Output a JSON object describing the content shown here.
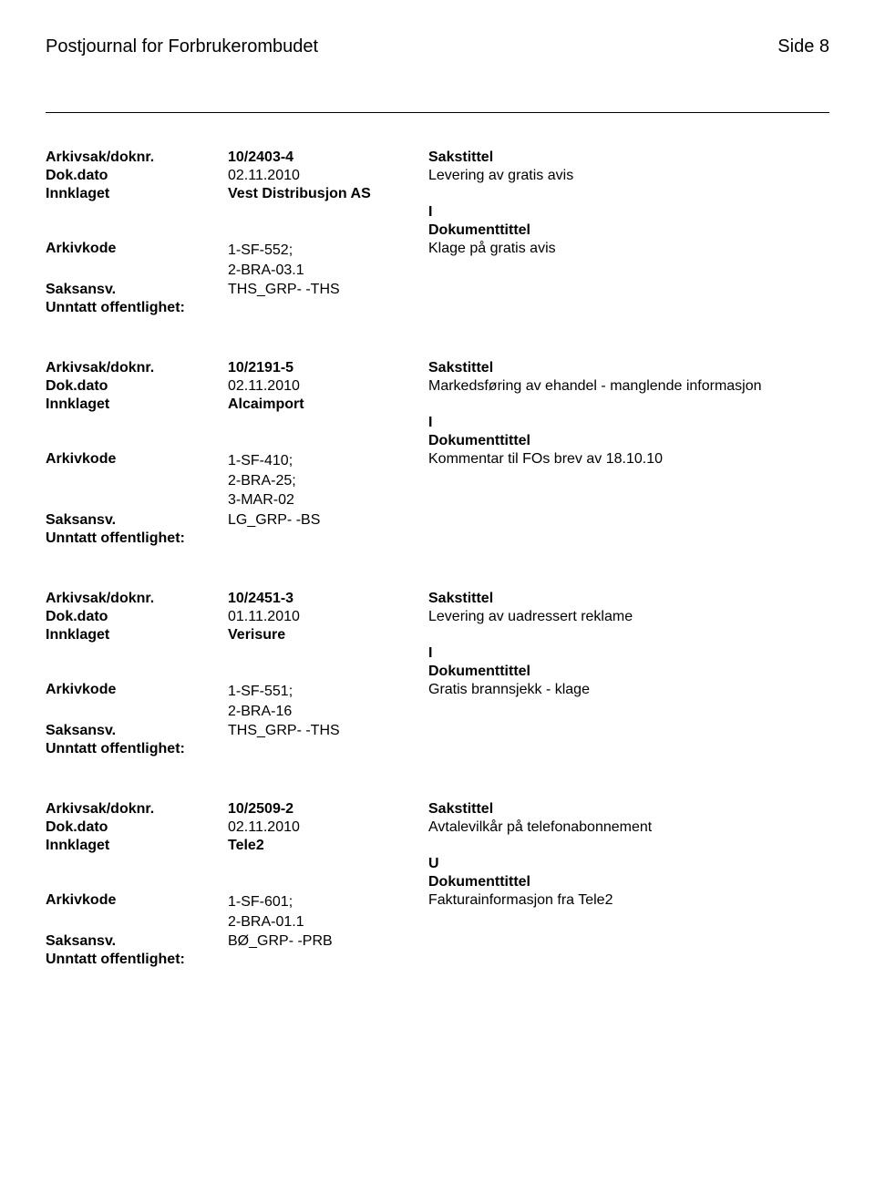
{
  "header": {
    "title": "Postjournal for Forbrukerombudet",
    "page": "Side 8"
  },
  "labels": {
    "arkivsak": "Arkivsak/doknr.",
    "dokdato": "Dok.dato",
    "innklaget": "Innklaget",
    "arkivkode": "Arkivkode",
    "saksansv": "Saksansv.",
    "unntatt": "Unntatt offentlighet:",
    "sakstittel": "Sakstittel",
    "dokumenttittel": "Dokumenttittel"
  },
  "entries": [
    {
      "saknr": "10/2403-4",
      "dato": "02.11.2010",
      "sakstittel": "Levering  av gratis avis",
      "innklaget": "Vest Distribusjon AS",
      "doktype": "I",
      "arkivkode": "1-SF-552;\n2-BRA-03.1",
      "doktittel": "Klage på gratis avis",
      "saksansv": "THS_GRP- -THS"
    },
    {
      "saknr": "10/2191-5",
      "dato": "02.11.2010",
      "sakstittel": "Markedsføring av ehandel - manglende informasjon",
      "innklaget": "Alcaimport",
      "doktype": "I",
      "arkivkode": "1-SF-410;\n2-BRA-25;\n3-MAR-02",
      "doktittel": "Kommentar til FOs brev av 18.10.10",
      "saksansv": "LG_GRP- -BS"
    },
    {
      "saknr": "10/2451-3",
      "dato": "01.11.2010",
      "sakstittel": "Levering av uadressert reklame",
      "innklaget": "Verisure",
      "doktype": "I",
      "arkivkode": "1-SF-551;\n2-BRA-16",
      "doktittel": "Gratis brannsjekk - klage",
      "saksansv": "THS_GRP- -THS"
    },
    {
      "saknr": "10/2509-2",
      "dato": "02.11.2010",
      "sakstittel": "Avtalevilkår på telefonabonnement",
      "innklaget": "Tele2",
      "doktype": "U",
      "arkivkode": "1-SF-601;\n2-BRA-01.1",
      "doktittel": "Fakturainformasjon fra Tele2",
      "saksansv": "BØ_GRP- -PRB"
    }
  ]
}
